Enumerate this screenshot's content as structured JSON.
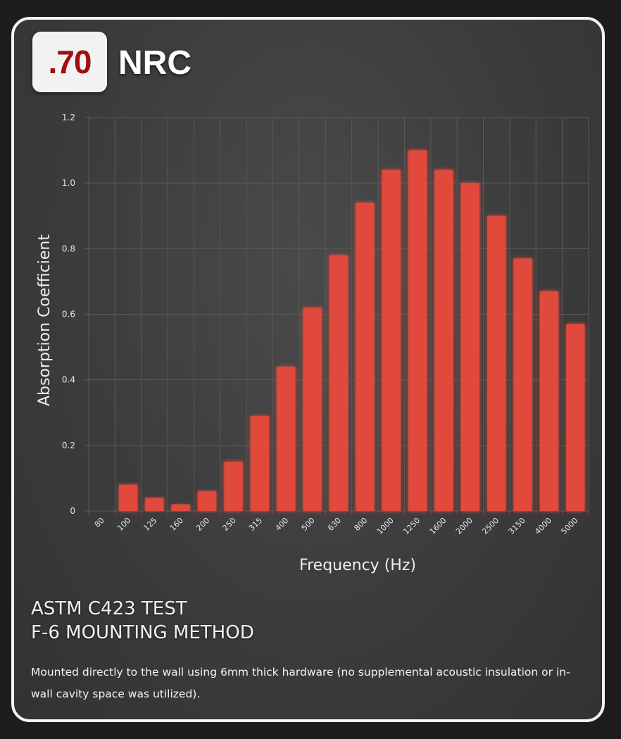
{
  "badge": {
    "value": ".70",
    "label": "NRC"
  },
  "colors": {
    "bar": "#e24a3d",
    "badge_value": "#a01010",
    "grid": "#5a5a5a"
  },
  "chart_data": {
    "type": "bar",
    "title": "",
    "xlabel": "Frequency (Hz)",
    "ylabel": "Absorption Coefficient",
    "ylim": [
      0,
      1.2
    ],
    "yticks": [
      "0",
      "0.2",
      "0.4",
      "0.6",
      "0.8",
      "1.0",
      "1.2"
    ],
    "categories": [
      "80",
      "100",
      "125",
      "160",
      "200",
      "250",
      "315",
      "400",
      "500",
      "630",
      "800",
      "1000",
      "1250",
      "1600",
      "2000",
      "2500",
      "3150",
      "4000",
      "5000"
    ],
    "values": [
      0,
      0.08,
      0.04,
      0.02,
      0.06,
      0.15,
      0.29,
      0.44,
      0.62,
      0.78,
      0.94,
      1.04,
      1.1,
      1.04,
      1.0,
      0.9,
      0.77,
      0.67,
      0.57
    ],
    "grid": true
  },
  "test": {
    "line1": "ASTM C423 TEST",
    "line2": "F-6 MOUNTING METHOD",
    "description": "Mounted directly to the wall using 6mm thick hardware (no supplemental acoustic insulation or in-wall cavity space was utilized)."
  }
}
